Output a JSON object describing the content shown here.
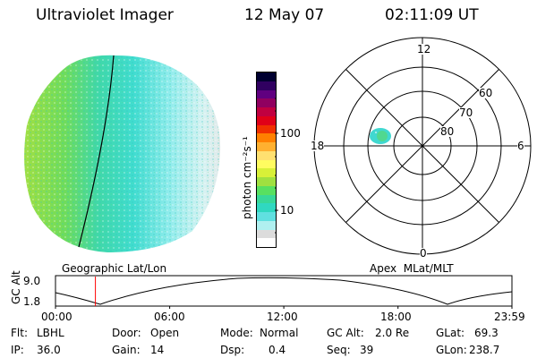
{
  "header": {
    "instrument": "Ultraviolet Imager",
    "date": "12 May 07",
    "time": "02:11:09 UT"
  },
  "images": {
    "geographic_label": "Geographic Lat/Lon",
    "apex_label": "Apex  MLat/MLT"
  },
  "colorbar": {
    "unit_label": "photon cm⁻²s⁻¹",
    "ticks": [
      "100",
      "10"
    ],
    "colors": [
      "#ffffff",
      "#dcdcdc",
      "#b0f0f0",
      "#60e0e0",
      "#30d8c0",
      "#38d898",
      "#58e060",
      "#a0e040",
      "#d8f038",
      "#fffc60",
      "#ffe070",
      "#ffb030",
      "#ff8000",
      "#f03000",
      "#e00018",
      "#c00040",
      "#900060",
      "#600080",
      "#300060",
      "#000030"
    ]
  },
  "polar": {
    "mlt_labels": [
      "12",
      "18",
      "6",
      "0"
    ],
    "lat_labels": [
      "60",
      "70",
      "80"
    ]
  },
  "timeline": {
    "ylabel": "GC Alt",
    "ytick_top": "9.0",
    "ytick_bottom": "1.8",
    "xticks": [
      "00:00",
      "06:00",
      "12:00",
      "18:00",
      "23:59"
    ],
    "marker_time": "02:11",
    "marker_color": "#ff0000"
  },
  "info": {
    "flt_label": "Flt:",
    "flt_value": "LBHL",
    "ip_label": "IP:",
    "ip_value": "36.0",
    "door_label": "Door:",
    "door_value": "Open",
    "gain_label": "Gain:",
    "gain_value": "14",
    "mode_label": "Mode:",
    "mode_value": "Normal",
    "dsp_label": "Dsp:",
    "dsp_value": "0.4",
    "gcalt_label": "GC Alt:",
    "gcalt_value": "2.0 Re",
    "seq_label": "Seq:",
    "seq_value": "39",
    "glat_label": "GLat:",
    "glat_value": "69.3",
    "glon_label": "GLon:",
    "glon_value": "238.7"
  }
}
